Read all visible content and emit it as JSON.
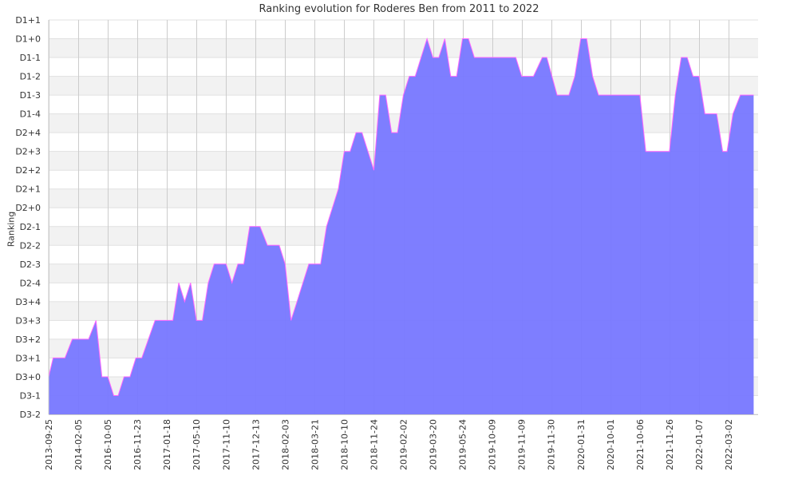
{
  "chart_data": {
    "type": "area",
    "title": "Ranking evolution for Roderes Ben from 2011 to 2022",
    "ylabel": "Ranking",
    "xlabel": "",
    "y_categories": [
      "D3-2",
      "D3-1",
      "D3+0",
      "D3+1",
      "D3+2",
      "D3+3",
      "D3+4",
      "D2-4",
      "D2-3",
      "D2-2",
      "D2-1",
      "D2+0",
      "D2+1",
      "D2+2",
      "D2+3",
      "D2+4",
      "D1-4",
      "D1-3",
      "D1-2",
      "D1-1",
      "D1+0",
      "D1+1"
    ],
    "x_tick_labels": [
      "2013-09-25",
      "2014-02-05",
      "2016-10-05",
      "2016-11-23",
      "2017-01-18",
      "2017-05-10",
      "2017-11-10",
      "2017-12-13",
      "2018-02-03",
      "2018-03-21",
      "2018-10-10",
      "2018-11-24",
      "2019-02-02",
      "2019-03-20",
      "2019-05-24",
      "2019-10-09",
      "2019-11-09",
      "2019-11-30",
      "2020-01-31",
      "2020-10-01",
      "2021-10-06",
      "2021-11-26",
      "2022-01-07",
      "2022-03-02"
    ],
    "series": [
      {
        "color": "#7777ff",
        "line_color": "#ff66ff",
        "values": [
          {
            "x": 0.0,
            "y": "D3+0"
          },
          {
            "x": 0.15,
            "y": "D3+1"
          },
          {
            "x": 0.55,
            "y": "D3+1"
          },
          {
            "x": 0.8,
            "y": "D3+2"
          },
          {
            "x": 1.35,
            "y": "D3+2"
          },
          {
            "x": 1.6,
            "y": "D3+3"
          },
          {
            "x": 1.8,
            "y": "D3+0"
          },
          {
            "x": 2.0,
            "y": "D3+0"
          },
          {
            "x": 2.2,
            "y": "D3-1"
          },
          {
            "x": 2.35,
            "y": "D3-1"
          },
          {
            "x": 2.55,
            "y": "D3+0"
          },
          {
            "x": 2.75,
            "y": "D3+0"
          },
          {
            "x": 2.95,
            "y": "D3+1"
          },
          {
            "x": 3.15,
            "y": "D3+1"
          },
          {
            "x": 3.6,
            "y": "D3+3"
          },
          {
            "x": 4.2,
            "y": "D3+3"
          },
          {
            "x": 4.4,
            "y": "D2-4"
          },
          {
            "x": 4.6,
            "y": "D3+4"
          },
          {
            "x": 4.8,
            "y": "D2-4"
          },
          {
            "x": 5.0,
            "y": "D3+3"
          },
          {
            "x": 5.2,
            "y": "D3+3"
          },
          {
            "x": 5.4,
            "y": "D2-4"
          },
          {
            "x": 5.6,
            "y": "D2-3"
          },
          {
            "x": 6.0,
            "y": "D2-3"
          },
          {
            "x": 6.2,
            "y": "D2-4"
          },
          {
            "x": 6.4,
            "y": "D2-3"
          },
          {
            "x": 6.6,
            "y": "D2-3"
          },
          {
            "x": 6.8,
            "y": "D2-1"
          },
          {
            "x": 7.15,
            "y": "D2-1"
          },
          {
            "x": 7.4,
            "y": "D2-2"
          },
          {
            "x": 7.8,
            "y": "D2-2"
          },
          {
            "x": 8.0,
            "y": "D2-3"
          },
          {
            "x": 8.2,
            "y": "D3+3"
          },
          {
            "x": 8.4,
            "y": "D3+4"
          },
          {
            "x": 8.8,
            "y": "D2-3"
          },
          {
            "x": 9.2,
            "y": "D2-3"
          },
          {
            "x": 9.4,
            "y": "D2-1"
          },
          {
            "x": 9.8,
            "y": "D2+1"
          },
          {
            "x": 10.0,
            "y": "D2+3"
          },
          {
            "x": 10.2,
            "y": "D2+3"
          },
          {
            "x": 10.4,
            "y": "D2+4"
          },
          {
            "x": 10.6,
            "y": "D2+4"
          },
          {
            "x": 11.0,
            "y": "D2+2"
          },
          {
            "x": 11.2,
            "y": "D1-3"
          },
          {
            "x": 11.4,
            "y": "D1-3"
          },
          {
            "x": 11.6,
            "y": "D2+4"
          },
          {
            "x": 11.8,
            "y": "D2+4"
          },
          {
            "x": 12.0,
            "y": "D1-3"
          },
          {
            "x": 12.2,
            "y": "D1-2"
          },
          {
            "x": 12.4,
            "y": "D1-2"
          },
          {
            "x": 12.6,
            "y": "D1-1"
          },
          {
            "x": 12.8,
            "y": "D1+0"
          },
          {
            "x": 13.0,
            "y": "D1-1"
          },
          {
            "x": 13.2,
            "y": "D1-1"
          },
          {
            "x": 13.4,
            "y": "D1+0"
          },
          {
            "x": 13.6,
            "y": "D1-2"
          },
          {
            "x": 13.8,
            "y": "D1-2"
          },
          {
            "x": 14.0,
            "y": "D1+0"
          },
          {
            "x": 14.2,
            "y": "D1+0"
          },
          {
            "x": 14.4,
            "y": "D1-1"
          },
          {
            "x": 15.8,
            "y": "D1-1"
          },
          {
            "x": 16.0,
            "y": "D1-2"
          },
          {
            "x": 16.4,
            "y": "D1-2"
          },
          {
            "x": 16.7,
            "y": "D1-1"
          },
          {
            "x": 16.85,
            "y": "D1-1"
          },
          {
            "x": 17.2,
            "y": "D1-3"
          },
          {
            "x": 17.6,
            "y": "D1-3"
          },
          {
            "x": 17.8,
            "y": "D1-2"
          },
          {
            "x": 18.0,
            "y": "D1+0"
          },
          {
            "x": 18.2,
            "y": "D1+0"
          },
          {
            "x": 18.4,
            "y": "D1-2"
          },
          {
            "x": 18.6,
            "y": "D1-3"
          },
          {
            "x": 19.0,
            "y": "D1-3"
          },
          {
            "x": 20.0,
            "y": "D1-3"
          },
          {
            "x": 20.2,
            "y": "D2+3"
          },
          {
            "x": 21.0,
            "y": "D2+3"
          },
          {
            "x": 21.2,
            "y": "D1-3"
          },
          {
            "x": 21.4,
            "y": "D1-1"
          },
          {
            "x": 21.6,
            "y": "D1-1"
          },
          {
            "x": 21.8,
            "y": "D1-2"
          },
          {
            "x": 22.0,
            "y": "D1-2"
          },
          {
            "x": 22.2,
            "y": "D1-4"
          },
          {
            "x": 22.6,
            "y": "D1-4"
          },
          {
            "x": 22.8,
            "y": "D2+3"
          },
          {
            "x": 22.95,
            "y": "D2+3"
          },
          {
            "x": 23.15,
            "y": "D1-4"
          },
          {
            "x": 23.4,
            "y": "D1-3"
          },
          {
            "x": 23.85,
            "y": "D1-3"
          }
        ]
      }
    ],
    "x_range": [
      0,
      24
    ],
    "grid": true,
    "legend": "none"
  }
}
